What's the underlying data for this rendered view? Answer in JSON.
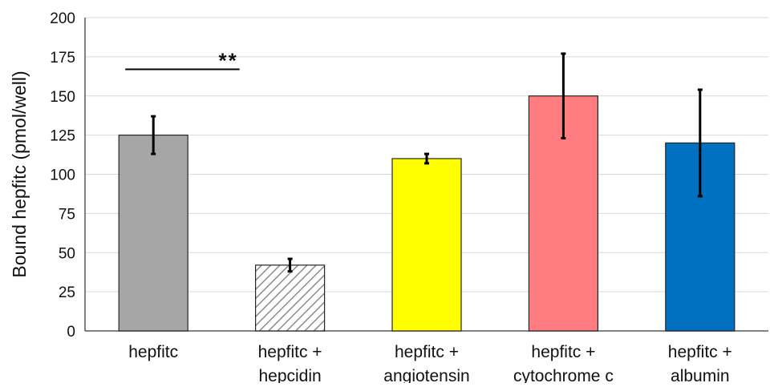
{
  "chart_data": {
    "type": "bar",
    "title": "",
    "xlabel": "",
    "ylabel": "Bound hepfitc (pmol/well)",
    "ylim": [
      0,
      200
    ],
    "yticks": [
      0,
      25,
      50,
      75,
      100,
      125,
      150,
      175,
      200
    ],
    "grid": true,
    "legend": "none",
    "categories": [
      [
        "hepfitc"
      ],
      [
        "hepfitc +",
        "hepcidin"
      ],
      [
        "hepfitc +",
        "angiotensin"
      ],
      [
        "hepfitc +",
        "cytochrome c"
      ],
      [
        "hepfitc +",
        "albumin"
      ]
    ],
    "values": [
      125,
      42,
      110,
      150,
      120
    ],
    "errors": [
      12,
      4,
      3,
      27,
      34
    ],
    "bar_colors": [
      "#a6a6a6",
      "hatched",
      "#ffff00",
      "#ff7c80",
      "#0070c0"
    ],
    "annotation": {
      "text": "**",
      "between": [
        0,
        1
      ],
      "y": 167
    }
  }
}
